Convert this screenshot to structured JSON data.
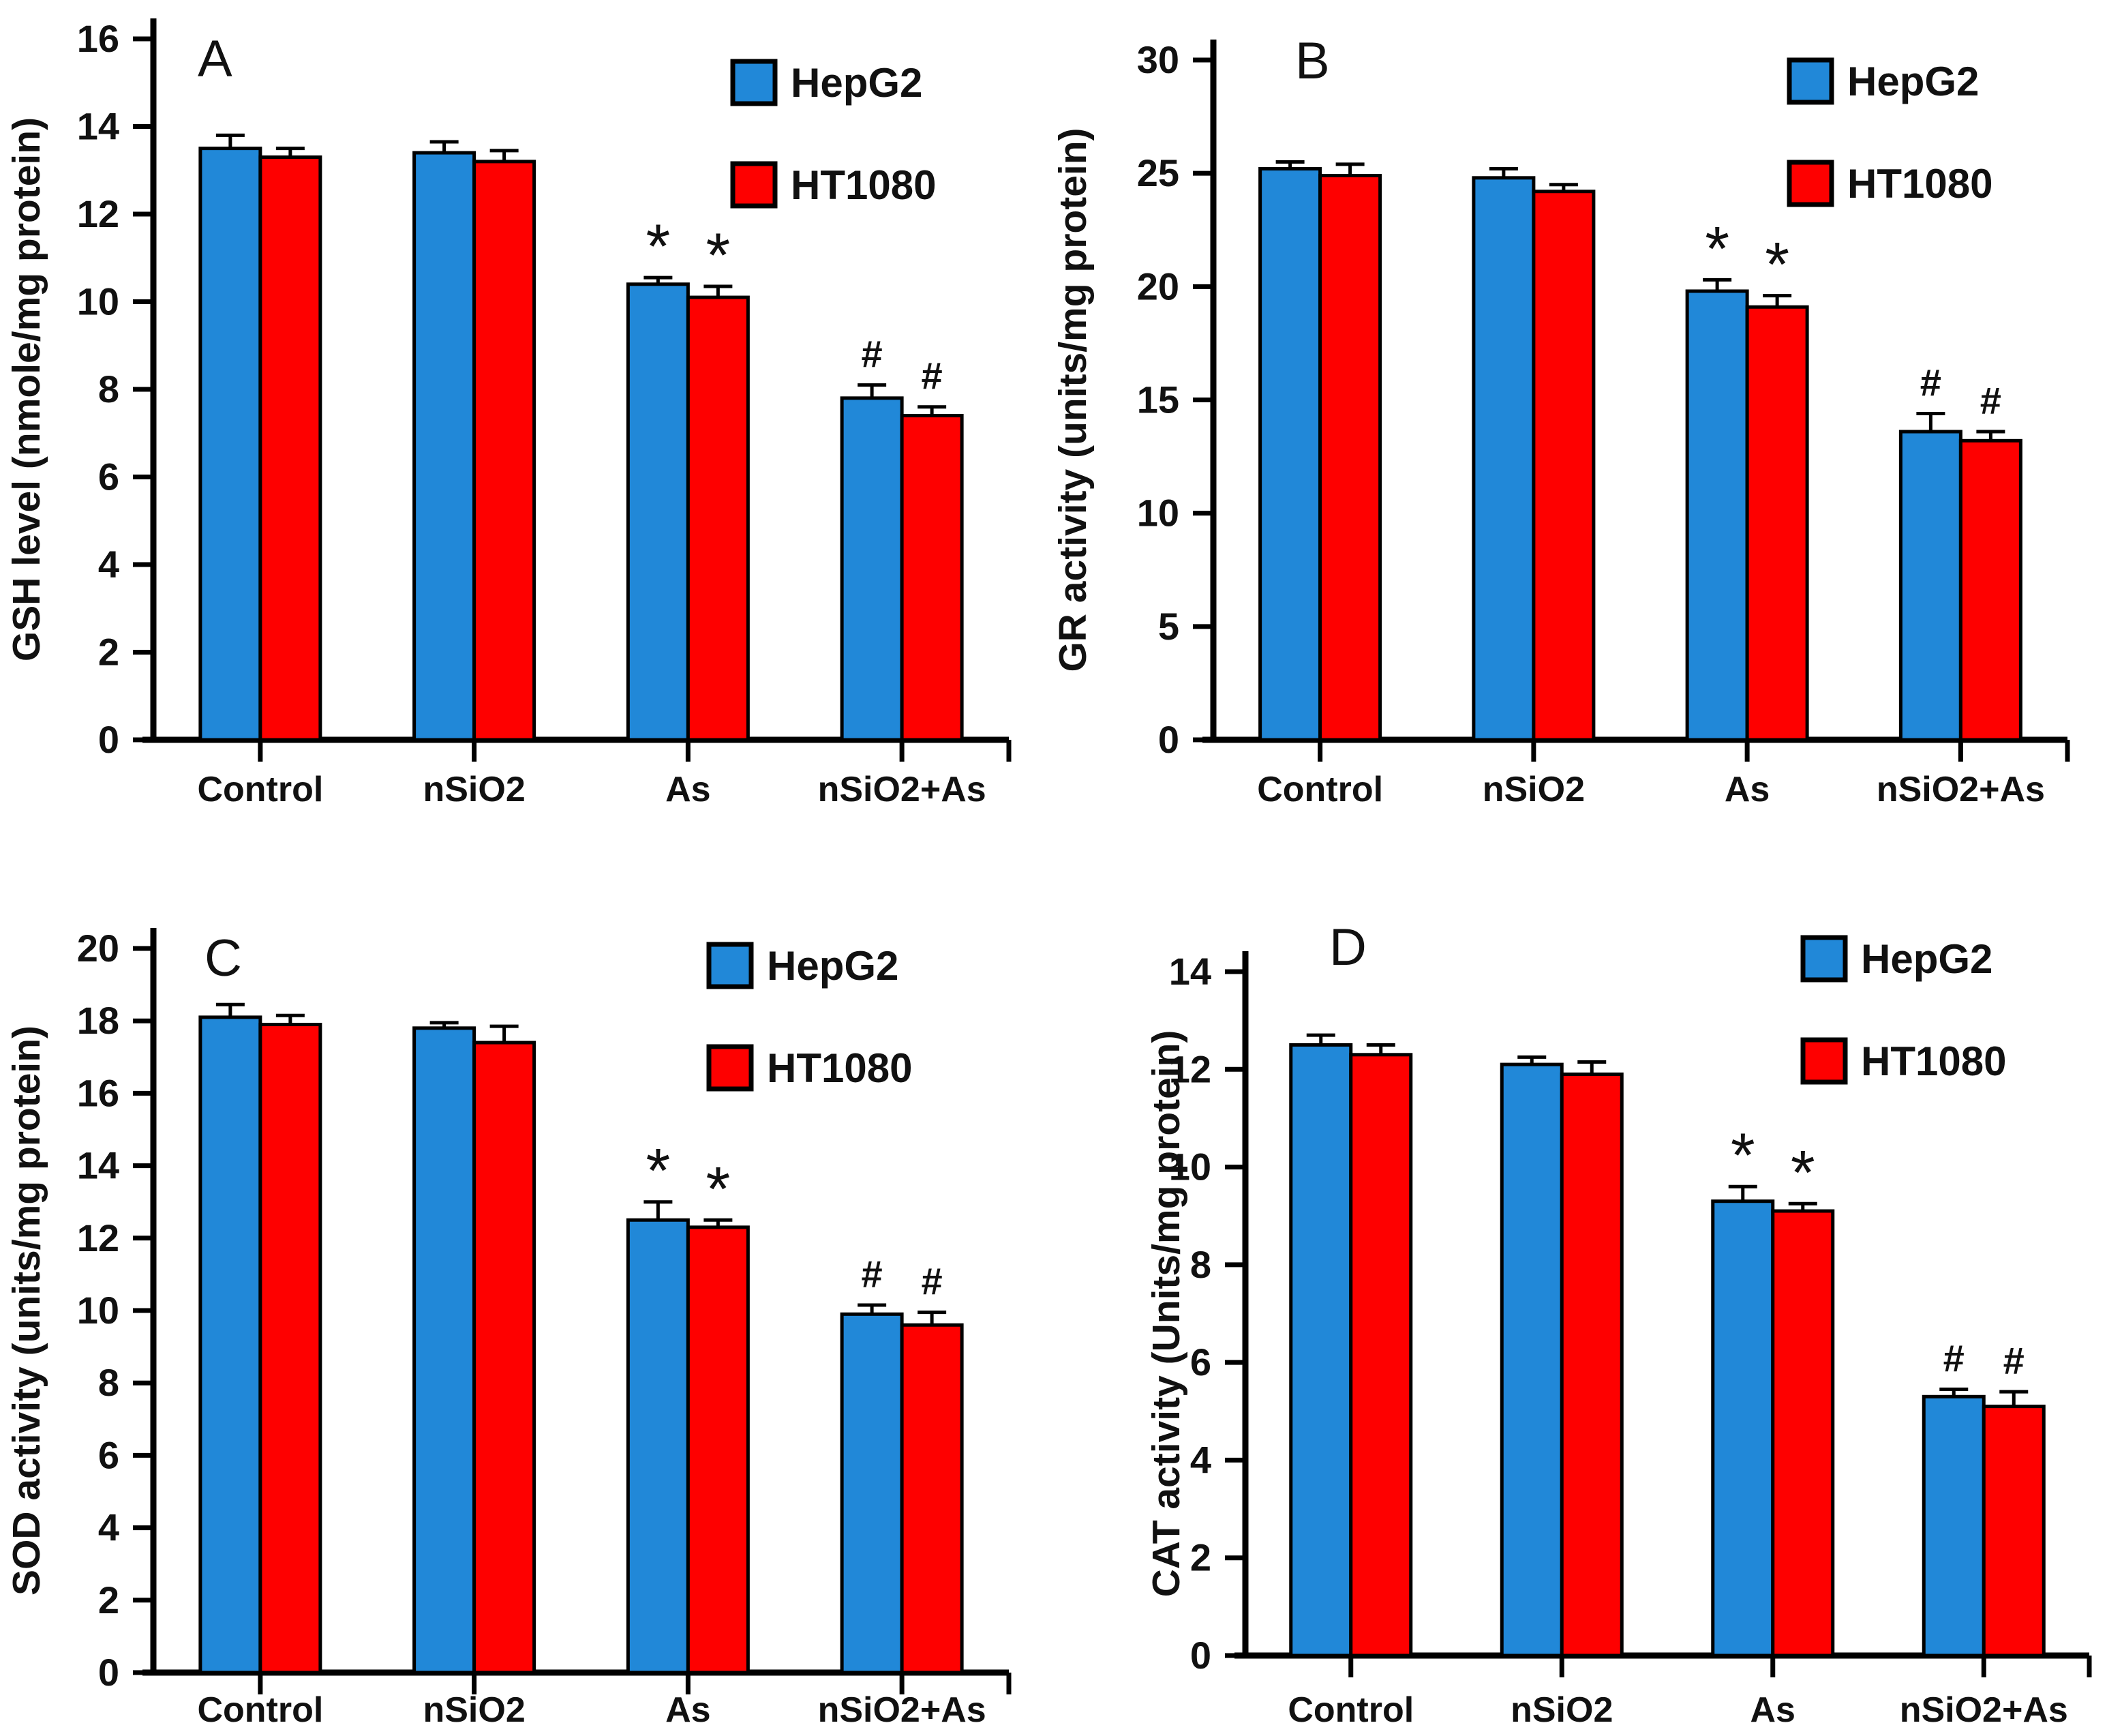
{
  "figure": {
    "description": "Four-panel bar figure comparing antioxidant parameters in HepG2 and HT1080 cells",
    "panel_letters": [
      "A",
      "B",
      "C",
      "D"
    ]
  },
  "legend": {
    "entries": [
      {
        "label": "HepG2",
        "color": "#2188d8"
      },
      {
        "label": "HT1080",
        "color": "#fe0000"
      }
    ],
    "position": "top-right inside plot"
  },
  "chart_data": [
    {
      "type": "bar",
      "panel_label": "A",
      "ylabel": "GSH level (nmole/mg protein)",
      "xlabel": "",
      "categories": [
        "Control",
        "nSiO2",
        "As",
        "nSiO2+As"
      ],
      "ylim": [
        0,
        16
      ],
      "yticks": [
        0,
        2,
        4,
        6,
        8,
        10,
        12,
        14,
        16
      ],
      "grid": false,
      "sig_markers": [
        "",
        "",
        "*",
        "#"
      ],
      "series": [
        {
          "name": "HepG2",
          "color": "#2188d8",
          "values": [
            13.5,
            13.4,
            10.4,
            7.8
          ],
          "errors": [
            0.3,
            0.25,
            0.15,
            0.3
          ]
        },
        {
          "name": "HT1080",
          "color": "#fe0000",
          "values": [
            13.3,
            13.2,
            10.1,
            7.4
          ],
          "errors": [
            0.2,
            0.25,
            0.25,
            0.2
          ]
        }
      ]
    },
    {
      "type": "bar",
      "panel_label": "B",
      "ylabel": "GR activity (units/mg protein)",
      "xlabel": "",
      "categories": [
        "Control",
        "nSiO2",
        "As",
        "nSiO2+As"
      ],
      "ylim": [
        0,
        30
      ],
      "yticks": [
        0,
        5,
        10,
        15,
        20,
        25,
        30
      ],
      "grid": false,
      "sig_markers": [
        "",
        "",
        "*",
        "#"
      ],
      "series": [
        {
          "name": "HepG2",
          "color": "#2188d8",
          "values": [
            25.2,
            24.8,
            19.8,
            13.6
          ],
          "errors": [
            0.3,
            0.4,
            0.5,
            0.8
          ]
        },
        {
          "name": "HT1080",
          "color": "#fe0000",
          "values": [
            24.9,
            24.2,
            19.1,
            13.2
          ],
          "errors": [
            0.5,
            0.3,
            0.5,
            0.4
          ]
        }
      ]
    },
    {
      "type": "bar",
      "panel_label": "C",
      "ylabel": "SOD activity (units/mg protein)",
      "xlabel": "",
      "categories": [
        "Control",
        "nSiO2",
        "As",
        "nSiO2+As"
      ],
      "ylim": [
        0,
        20
      ],
      "yticks": [
        0,
        2,
        4,
        6,
        8,
        10,
        12,
        14,
        16,
        18,
        20
      ],
      "grid": false,
      "sig_markers": [
        "",
        "",
        "*",
        "#"
      ],
      "series": [
        {
          "name": "HepG2",
          "color": "#2188d8",
          "values": [
            18.1,
            17.8,
            12.5,
            9.9
          ],
          "errors": [
            0.35,
            0.15,
            0.5,
            0.25
          ]
        },
        {
          "name": "HT1080",
          "color": "#fe0000",
          "values": [
            17.9,
            17.4,
            12.3,
            9.6
          ],
          "errors": [
            0.25,
            0.45,
            0.2,
            0.35
          ]
        }
      ]
    },
    {
      "type": "bar",
      "panel_label": "D",
      "ylabel": "CAT activity (Units/mg protein)",
      "xlabel": "",
      "categories": [
        "Control",
        "nSiO2",
        "As",
        "nSiO2+As"
      ],
      "ylim": [
        0,
        14
      ],
      "yticks": [
        0,
        2,
        4,
        6,
        8,
        10,
        12,
        14
      ],
      "grid": false,
      "sig_markers": [
        "",
        "",
        "*",
        "#"
      ],
      "series": [
        {
          "name": "HepG2",
          "color": "#2188d8",
          "values": [
            12.5,
            12.1,
            9.3,
            5.3
          ],
          "errors": [
            0.2,
            0.15,
            0.3,
            0.15
          ]
        },
        {
          "name": "HT1080",
          "color": "#fe0000",
          "values": [
            12.3,
            11.9,
            9.1,
            5.1
          ],
          "errors": [
            0.2,
            0.25,
            0.15,
            0.3
          ]
        }
      ]
    }
  ]
}
